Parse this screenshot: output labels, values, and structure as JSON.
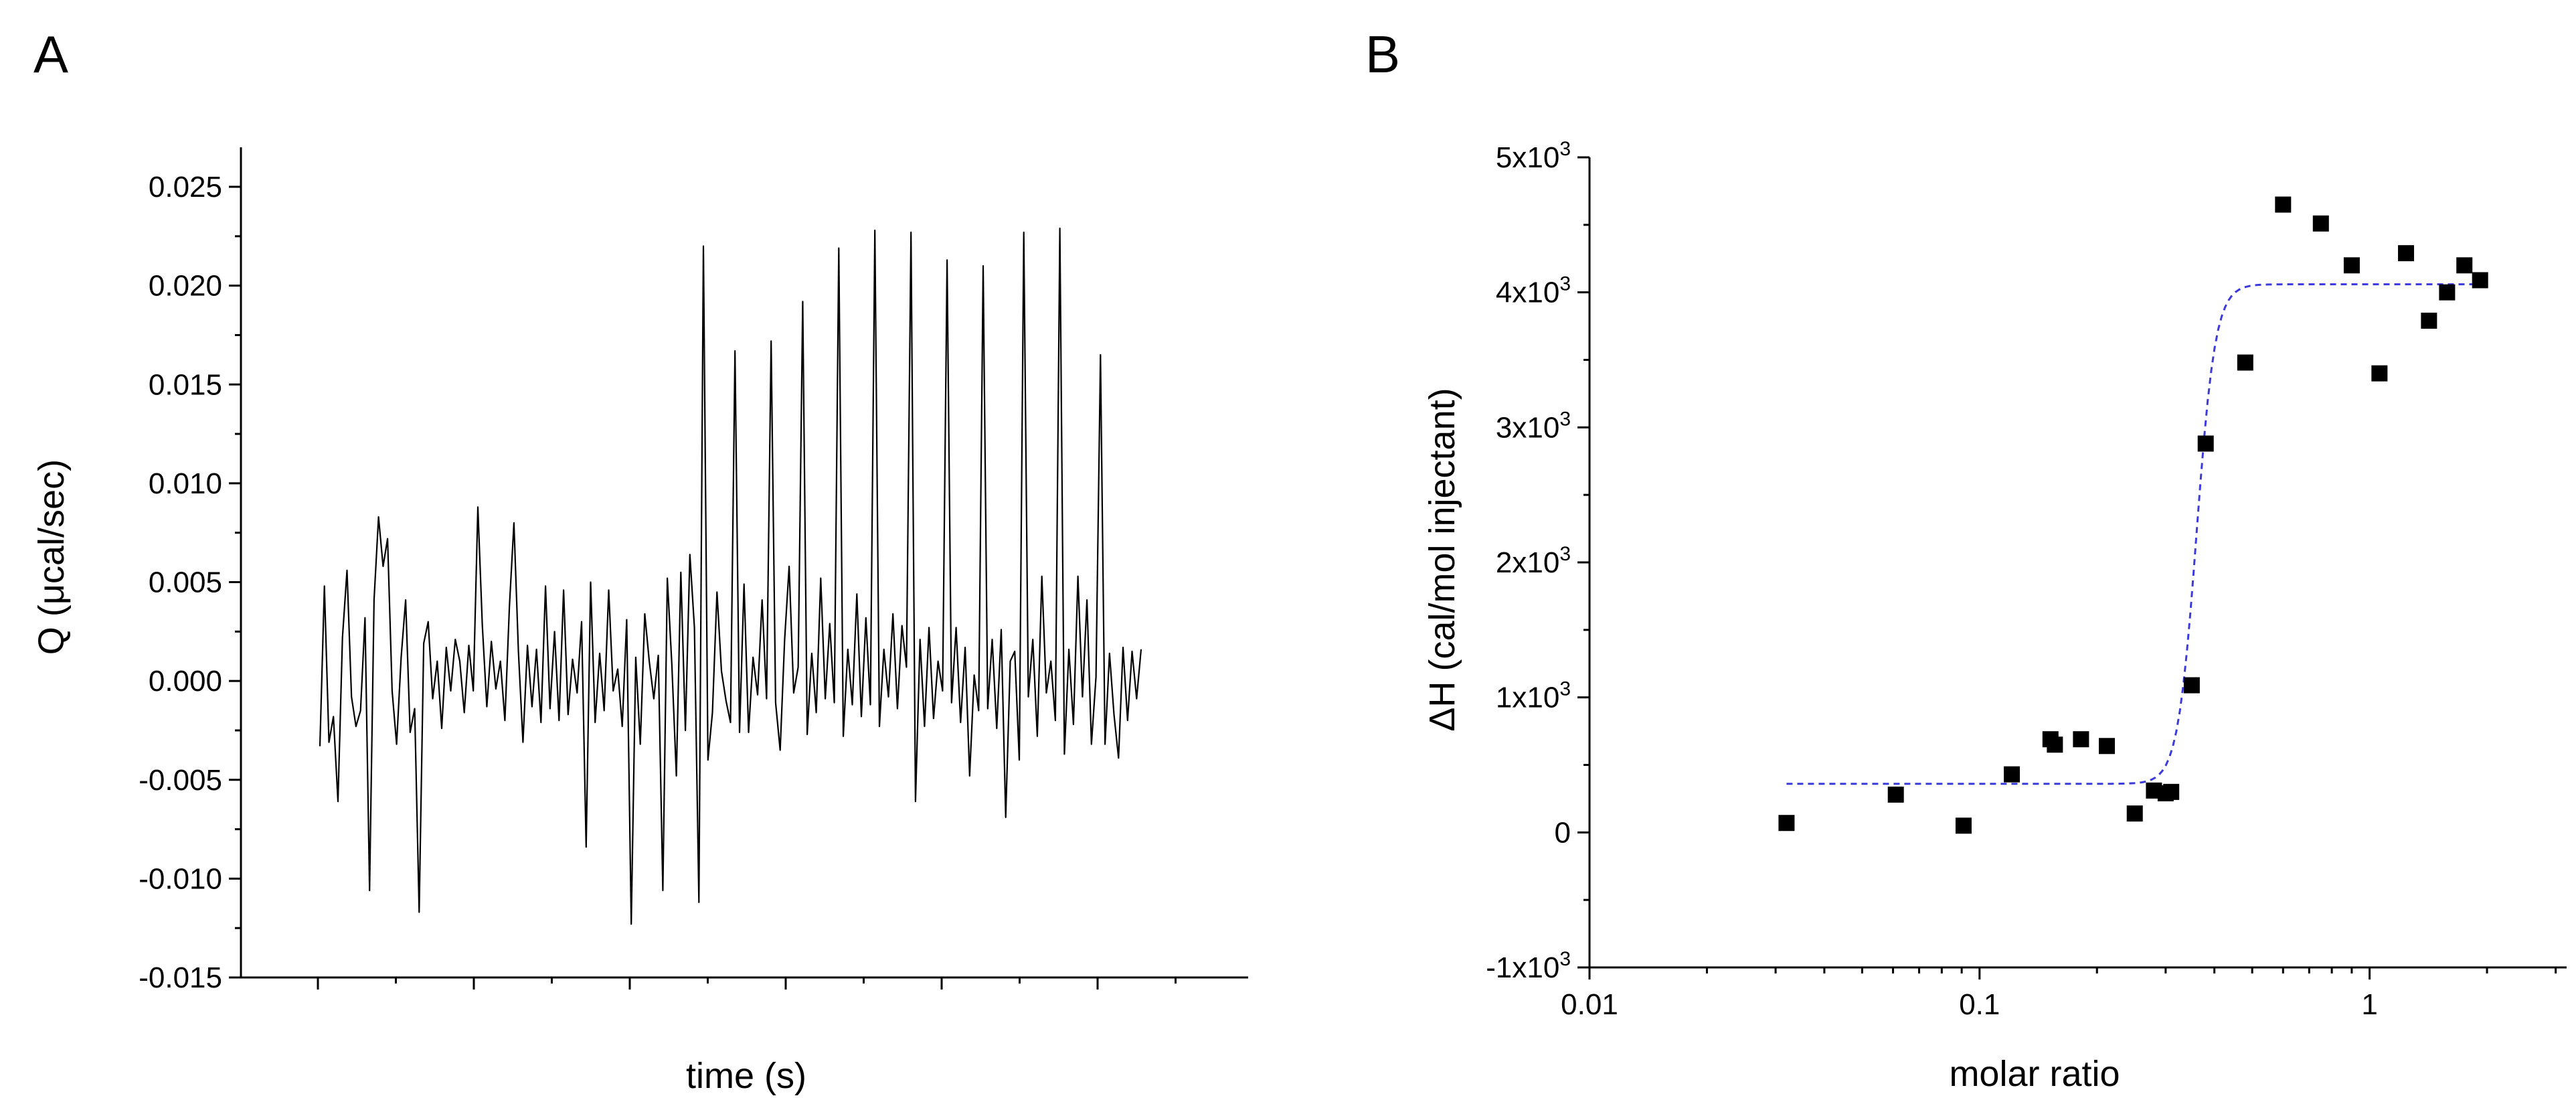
{
  "figure": {
    "panel_a_label": "A",
    "panel_b_label": "B"
  },
  "chart_data": [
    {
      "panel": "A",
      "type": "line",
      "title": "",
      "xlabel": "time (s)",
      "ylabel": "Q (μcal/sec)",
      "ylim": [
        -0.015,
        0.027
      ],
      "yticks": [
        -0.015,
        -0.01,
        -0.005,
        0.0,
        0.005,
        0.01,
        0.015,
        0.02,
        0.025
      ],
      "ytick_labels": [
        "-0.015",
        "-0.010",
        "-0.005",
        "0.000",
        "0.005",
        "0.010",
        "0.015",
        "0.020",
        "0.025"
      ],
      "x_tick_labels_shown": false,
      "x_major_ticks": 6,
      "line_color": "#000000",
      "series": [
        {
          "name": "Q",
          "y": [
            -0.0033,
            0.0048,
            -0.0031,
            -0.0018,
            -0.0061,
            0.0022,
            0.0056,
            -0.0008,
            -0.0023,
            -0.0015,
            0.0032,
            -0.0106,
            0.0041,
            0.0083,
            0.0058,
            0.0072,
            -0.0005,
            -0.0032,
            0.0012,
            0.0041,
            -0.0026,
            -0.0014,
            -0.0117,
            0.0019,
            0.003,
            -0.0009,
            0.001,
            -0.0024,
            0.0017,
            -0.0005,
            0.0021,
            0.001,
            -0.0016,
            0.0018,
            -0.0005,
            0.0088,
            0.0028,
            -0.0013,
            0.002,
            -0.0004,
            0.001,
            -0.002,
            0.0038,
            0.008,
            0.0015,
            -0.0031,
            0.0018,
            -0.0013,
            0.0016,
            -0.0021,
            0.0048,
            -0.0014,
            0.0025,
            -0.002,
            0.0046,
            -0.0017,
            0.0011,
            -0.0006,
            0.003,
            -0.0084,
            0.005,
            -0.0021,
            0.0014,
            -0.0015,
            0.0046,
            -0.0005,
            0.0006,
            -0.0023,
            0.0031,
            -0.0123,
            0.0012,
            -0.0032,
            0.0034,
            0.001,
            -0.0009,
            0.0013,
            -0.0106,
            0.0052,
            0.0008,
            -0.0048,
            0.0055,
            -0.0025,
            0.0064,
            0.0027,
            -0.0112,
            0.022,
            -0.004,
            -0.0016,
            0.0045,
            0.0005,
            -0.001,
            -0.0021,
            0.0167,
            -0.0026,
            0.0049,
            -0.0026,
            0.0012,
            -0.0007,
            0.0041,
            -0.0009,
            0.0172,
            -0.0011,
            -0.0035,
            0.0021,
            0.0058,
            -0.0006,
            0.0007,
            0.0192,
            -0.0027,
            0.0014,
            -0.0016,
            0.0052,
            -0.0009,
            0.0029,
            -0.0011,
            0.0219,
            -0.0028,
            0.0016,
            -0.0012,
            0.0044,
            -0.0018,
            0.0032,
            -0.0012,
            0.0228,
            -0.0023,
            0.0016,
            -0.0008,
            0.0034,
            -0.0014,
            0.0028,
            0.0007,
            0.0227,
            -0.0061,
            0.0021,
            -0.0023,
            0.0027,
            -0.0019,
            0.001,
            -0.0005,
            0.0213,
            -0.0011,
            0.0027,
            -0.0021,
            0.0017,
            -0.0048,
            0.0003,
            -0.0015,
            0.021,
            -0.0014,
            0.0021,
            -0.0024,
            0.0026,
            -0.0069,
            0.001,
            0.0015,
            -0.004,
            0.0227,
            -0.0008,
            0.0021,
            -0.0028,
            0.0053,
            -0.0006,
            0.001,
            -0.002,
            0.0229,
            -0.0037,
            0.0016,
            -0.0022,
            0.0053,
            -0.0008,
            0.0041,
            -0.0032,
            0.0002,
            0.0165,
            -0.0032,
            0.0014,
            -0.0017,
            -0.0039,
            0.0017,
            -0.002,
            0.0015,
            -0.0009,
            0.0016
          ]
        }
      ]
    },
    {
      "panel": "B",
      "type": "scatter",
      "title": "",
      "xlabel": "molar ratio",
      "ylabel": "ΔH (cal/mol injectant)",
      "xscale": "log",
      "xlim": [
        0.01,
        3.2
      ],
      "xticks": [
        0.01,
        0.1,
        1
      ],
      "xtick_labels": [
        "0.01",
        "0.1",
        "1"
      ],
      "ylim": [
        -1000,
        5000
      ],
      "yticks": [
        -1000,
        0,
        1000,
        2000,
        3000,
        4000,
        5000
      ],
      "ytick_labels": [
        {
          "base": "-1x10",
          "exp": "3"
        },
        {
          "base": "0",
          "exp": ""
        },
        {
          "base": "1x10",
          "exp": "3"
        },
        {
          "base": "2x10",
          "exp": "3"
        },
        {
          "base": "3x10",
          "exp": "3"
        },
        {
          "base": "4x10",
          "exp": "3"
        },
        {
          "base": "5x10",
          "exp": "3"
        }
      ],
      "series": [
        {
          "name": "data",
          "marker": "square",
          "color": "#000000",
          "x": [
            0.032,
            0.061,
            0.091,
            0.121,
            0.152,
            0.156,
            0.182,
            0.212,
            0.25,
            0.28,
            0.3,
            0.31,
            0.35,
            0.38,
            0.48,
            0.6,
            0.75,
            0.9,
            1.06,
            1.24,
            1.42,
            1.58,
            1.75,
            1.92
          ],
          "y": [
            70,
            280,
            50,
            430,
            690,
            650,
            690,
            640,
            140,
            310,
            290,
            300,
            1090,
            2880,
            3480,
            4650,
            4510,
            4200,
            3400,
            4290,
            3790,
            4000,
            4200,
            4090
          ]
        },
        {
          "name": "fit",
          "line_style": "dashed",
          "color": "#3b3bdc",
          "low": 360,
          "high": 4060,
          "midpoint": 0.36,
          "steepness": 18
        }
      ]
    }
  ]
}
